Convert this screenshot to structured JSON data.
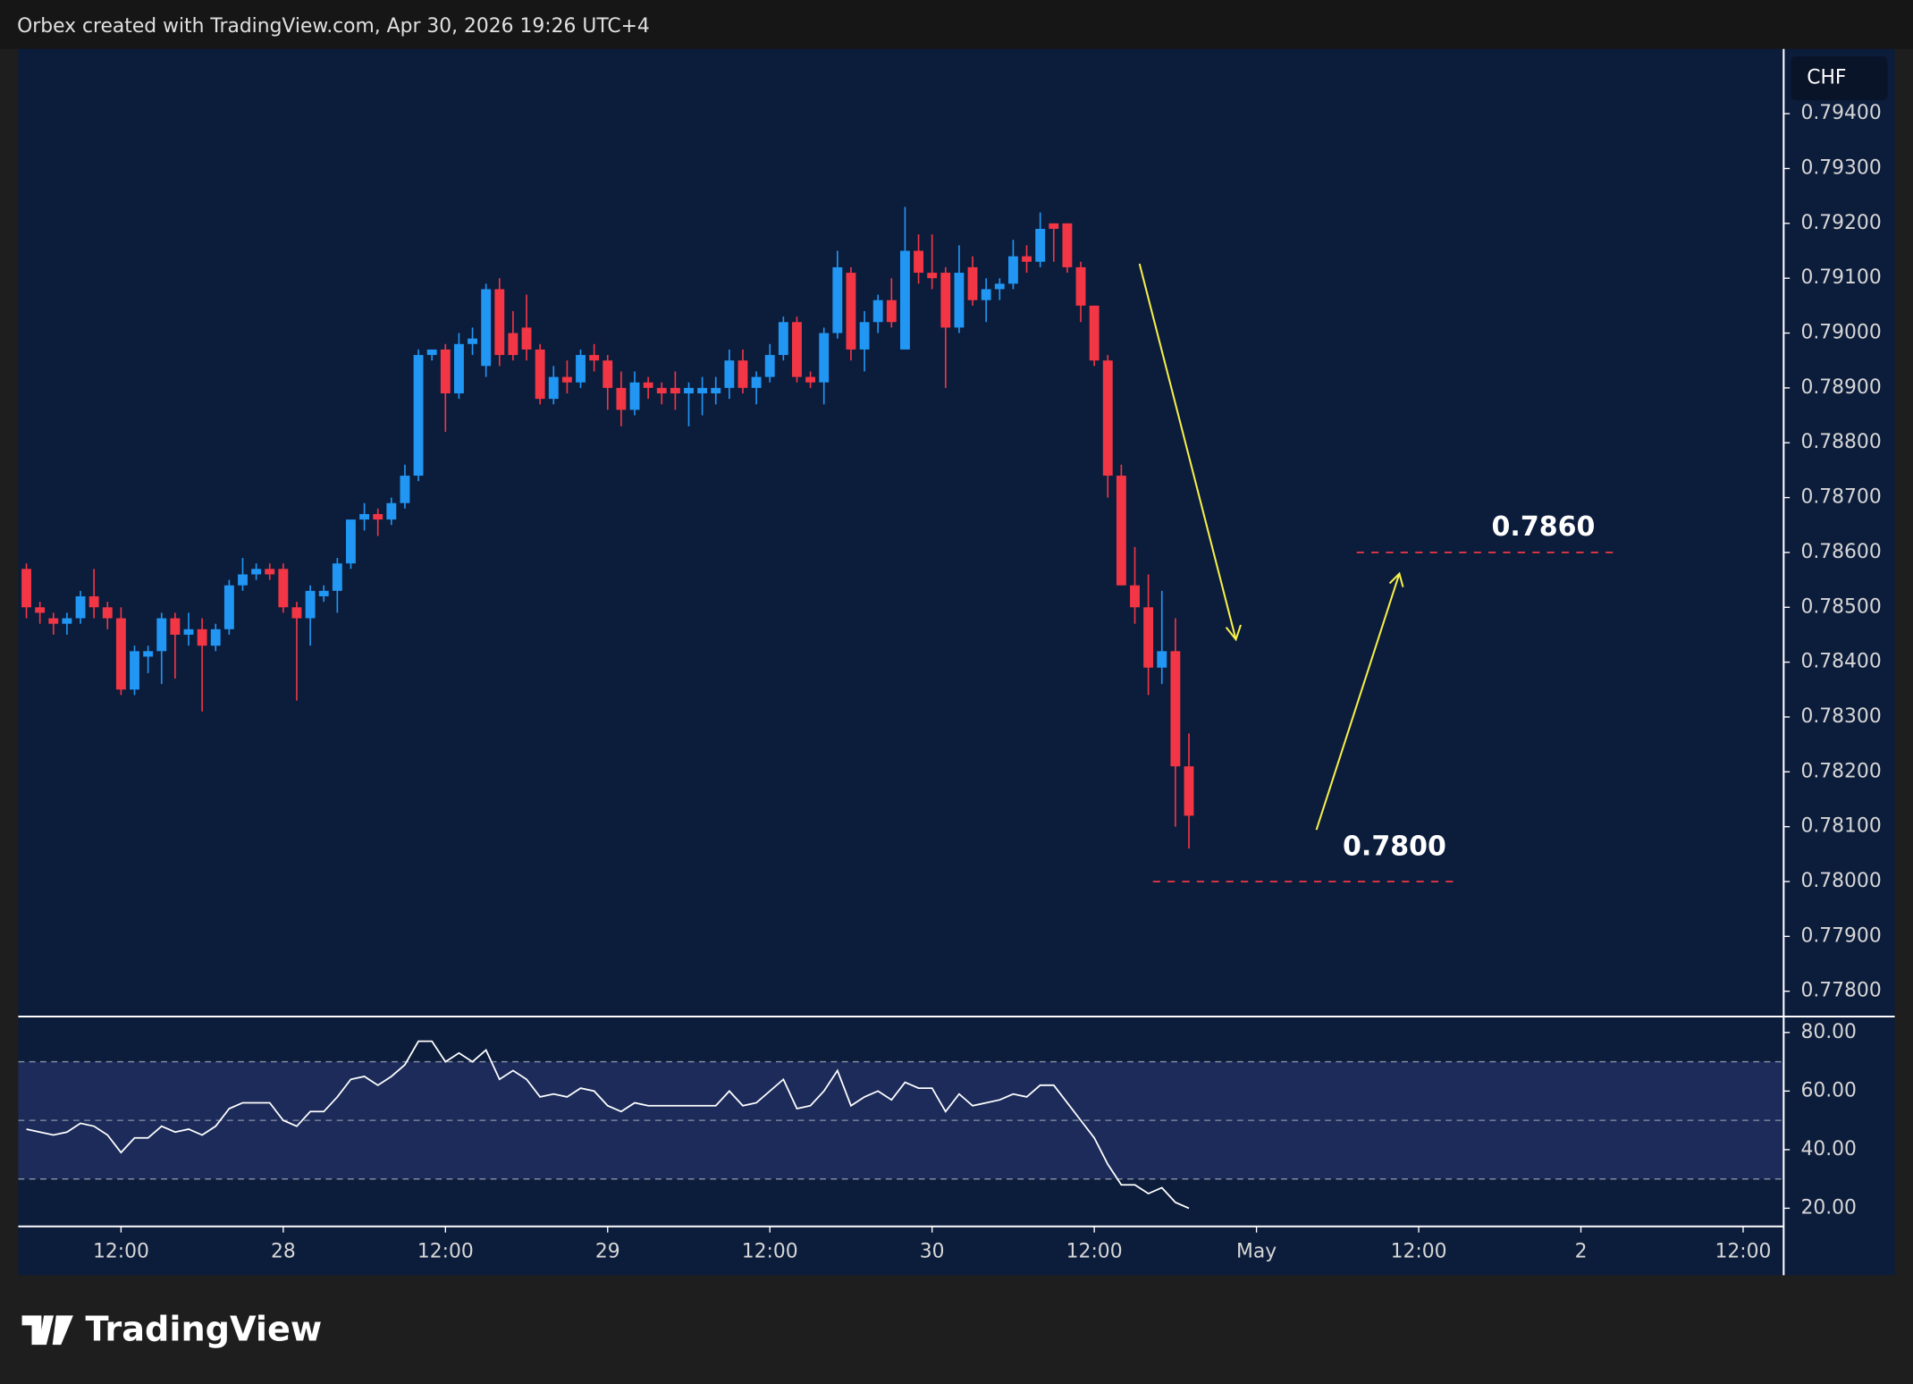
{
  "header": "Orbex created with TradingView.com, Apr 30, 2026 19:26 UTC+4",
  "watermark": "TradingView",
  "chart_data": {
    "type": "candlestick",
    "currency": "CHF",
    "up_color": "#2196f3",
    "down_color": "#f23645",
    "open": [
      0.7857,
      0.785,
      0.7848,
      0.7847,
      0.7848,
      0.7852,
      0.785,
      0.7848,
      0.7835,
      0.7841,
      0.7842,
      0.7848,
      0.7845,
      0.7846,
      0.7843,
      0.7846,
      0.7854,
      0.7856,
      0.7857,
      0.7857,
      0.785,
      0.7848,
      0.7852,
      0.7853,
      0.7858,
      0.7866,
      0.7867,
      0.7866,
      0.7869,
      0.7874,
      0.7896,
      0.7897,
      0.7889,
      0.7898,
      0.7894,
      0.7908,
      0.79,
      0.7901,
      0.7897,
      0.7888,
      0.7892,
      0.7891,
      0.7896,
      0.7895,
      0.789,
      0.7886,
      0.7891,
      0.789,
      0.789,
      0.7889,
      0.7889,
      0.7889,
      0.789,
      0.7895,
      0.789,
      0.7892,
      0.7896,
      0.7902,
      0.7892,
      0.7891,
      0.79,
      0.7911,
      0.7897,
      0.7902,
      0.7906,
      0.7897,
      0.7915,
      0.7911,
      0.7911,
      0.7901,
      0.7912,
      0.7906,
      0.7908,
      0.7909,
      0.7914,
      0.7913,
      0.792,
      0.792,
      0.7912,
      0.7905,
      0.7895,
      0.7874,
      0.7854,
      0.785,
      0.7839,
      0.7842,
      0.7821
    ],
    "high": [
      0.7858,
      0.7851,
      0.7849,
      0.7849,
      0.7853,
      0.7857,
      0.7851,
      0.785,
      0.7843,
      0.7843,
      0.7849,
      0.7849,
      0.7849,
      0.7848,
      0.7847,
      0.7855,
      0.7859,
      0.7858,
      0.7858,
      0.7858,
      0.7851,
      0.7854,
      0.7854,
      0.7859,
      0.7866,
      0.7869,
      0.7868,
      0.787,
      0.7876,
      0.7897,
      0.7897,
      0.7898,
      0.79,
      0.7901,
      0.7909,
      0.791,
      0.7904,
      0.7907,
      0.7898,
      0.7894,
      0.7895,
      0.7897,
      0.7898,
      0.7896,
      0.7893,
      0.7893,
      0.7892,
      0.7891,
      0.7893,
      0.7891,
      0.7892,
      0.7892,
      0.7897,
      0.7897,
      0.7893,
      0.7898,
      0.7903,
      0.7903,
      0.7893,
      0.7901,
      0.7915,
      0.7912,
      0.7904,
      0.7907,
      0.791,
      0.7923,
      0.7918,
      0.7918,
      0.7912,
      0.7916,
      0.7914,
      0.791,
      0.791,
      0.7917,
      0.7916,
      0.7922,
      0.792,
      0.792,
      0.7913,
      0.7905,
      0.7896,
      0.7876,
      0.7861,
      0.7856,
      0.7853,
      0.7848,
      0.7827
    ],
    "low": [
      0.7848,
      0.7847,
      0.7845,
      0.7845,
      0.7847,
      0.7848,
      0.7846,
      0.7834,
      0.7834,
      0.7838,
      0.7836,
      0.7837,
      0.7843,
      0.7831,
      0.7842,
      0.7845,
      0.7853,
      0.7855,
      0.7855,
      0.7849,
      0.7833,
      0.7843,
      0.7851,
      0.7849,
      0.7857,
      0.7864,
      0.7863,
      0.7865,
      0.7868,
      0.7873,
      0.7895,
      0.7882,
      0.7888,
      0.7896,
      0.7892,
      0.7894,
      0.7895,
      0.7895,
      0.7887,
      0.7887,
      0.7889,
      0.789,
      0.7893,
      0.7886,
      0.7883,
      0.7885,
      0.7888,
      0.7887,
      0.7886,
      0.7883,
      0.7885,
      0.7887,
      0.7888,
      0.7889,
      0.7887,
      0.7891,
      0.7895,
      0.7891,
      0.789,
      0.7887,
      0.7899,
      0.7895,
      0.7893,
      0.79,
      0.7901,
      0.7897,
      0.7909,
      0.7908,
      0.789,
      0.79,
      0.7905,
      0.7902,
      0.7906,
      0.7908,
      0.7911,
      0.7912,
      0.7913,
      0.7911,
      0.7902,
      0.7894,
      0.787,
      0.7854,
      0.7847,
      0.7834,
      0.7836,
      0.781,
      0.7806
    ],
    "close": [
      0.785,
      0.7849,
      0.7847,
      0.7848,
      0.7852,
      0.785,
      0.7848,
      0.7835,
      0.7842,
      0.7842,
      0.7848,
      0.7845,
      0.7846,
      0.7843,
      0.7846,
      0.7854,
      0.7856,
      0.7857,
      0.7856,
      0.785,
      0.7848,
      0.7853,
      0.7853,
      0.7858,
      0.7866,
      0.7867,
      0.7866,
      0.7869,
      0.7874,
      0.7896,
      0.7897,
      0.7889,
      0.7898,
      0.7899,
      0.7908,
      0.7896,
      0.7896,
      0.7897,
      0.7888,
      0.7892,
      0.7891,
      0.7896,
      0.7895,
      0.789,
      0.7886,
      0.7891,
      0.789,
      0.7889,
      0.7889,
      0.789,
      0.789,
      0.789,
      0.7895,
      0.789,
      0.7892,
      0.7896,
      0.7902,
      0.7892,
      0.7891,
      0.79,
      0.7912,
      0.7897,
      0.7902,
      0.7906,
      0.7902,
      0.7915,
      0.7911,
      0.791,
      0.7901,
      0.7911,
      0.7906,
      0.7908,
      0.7909,
      0.7914,
      0.7913,
      0.7919,
      0.7919,
      0.7912,
      0.7905,
      0.7895,
      0.7874,
      0.7854,
      0.785,
      0.7839,
      0.7842,
      0.7821,
      0.7812
    ],
    "xlim": [
      -0.6,
      130
    ],
    "xticks": [
      {
        "value": 7,
        "label": "12:00"
      },
      {
        "value": 19,
        "label": "28"
      },
      {
        "value": 31,
        "label": "12:00"
      },
      {
        "value": 43,
        "label": "29"
      },
      {
        "value": 55,
        "label": "12:00"
      },
      {
        "value": 67,
        "label": "30"
      },
      {
        "value": 79,
        "label": "12:00"
      },
      {
        "value": 91,
        "label": "May"
      },
      {
        "value": 103,
        "label": "12:00"
      },
      {
        "value": 115,
        "label": "2"
      },
      {
        "value": 127,
        "label": "12:00"
      }
    ],
    "ylim": [
      0.77756,
      0.79518
    ],
    "yticks": [
      {
        "value": 0.794,
        "label": "0.79400"
      },
      {
        "value": 0.793,
        "label": "0.79300"
      },
      {
        "value": 0.792,
        "label": "0.79200"
      },
      {
        "value": 0.791,
        "label": "0.79100"
      },
      {
        "value": 0.79,
        "label": "0.79000"
      },
      {
        "value": 0.789,
        "label": "0.78900"
      },
      {
        "value": 0.788,
        "label": "0.78800"
      },
      {
        "value": 0.787,
        "label": "0.78700"
      },
      {
        "value": 0.786,
        "label": "0.78600"
      },
      {
        "value": 0.785,
        "label": "0.78500"
      },
      {
        "value": 0.784,
        "label": "0.78400"
      },
      {
        "value": 0.783,
        "label": "0.78300"
      },
      {
        "value": 0.782,
        "label": "0.78200"
      },
      {
        "value": 0.781,
        "label": "0.78100"
      },
      {
        "value": 0.78,
        "label": "0.78000"
      },
      {
        "value": 0.779,
        "label": "0.77900"
      },
      {
        "value": 0.778,
        "label": "0.77800"
      }
    ],
    "levels": [
      {
        "label": "0.7860",
        "value": 0.786,
        "color": "#f23645"
      },
      {
        "label": "0.7800",
        "value": 0.78,
        "color": "#f23645"
      }
    ],
    "rsi": {
      "color": "#ffffff",
      "values": [
        47,
        46,
        45,
        46,
        49,
        48,
        45,
        39,
        44,
        44,
        48,
        46,
        47,
        45,
        48,
        54,
        56,
        56,
        56,
        50,
        48,
        53,
        53,
        58,
        64,
        65,
        62,
        65,
        69,
        77,
        77,
        70,
        73,
        70,
        74,
        64,
        67,
        64,
        58,
        59,
        58,
        61,
        60,
        55,
        53,
        56,
        55,
        55,
        55,
        55,
        55,
        55,
        60,
        55,
        56,
        60,
        64,
        54,
        55,
        60,
        67,
        55,
        58,
        60,
        57,
        63,
        61,
        61,
        53,
        59,
        55,
        56,
        57,
        59,
        58,
        62,
        62,
        56,
        50,
        44,
        35,
        28,
        28,
        25,
        27,
        22,
        20
      ],
      "ylim": [
        14.2,
        84.6
      ],
      "yticks": [
        {
          "value": 80,
          "label": "80.00"
        },
        {
          "value": 60,
          "label": "60.00"
        },
        {
          "value": 40,
          "label": "40.00"
        },
        {
          "value": 20,
          "label": "20.00"
        }
      ],
      "levels": [
        30,
        50,
        70
      ]
    }
  }
}
